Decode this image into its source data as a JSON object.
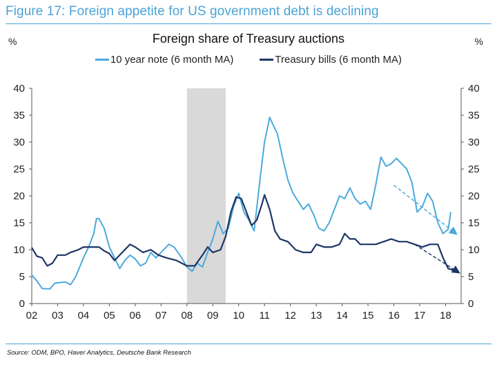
{
  "figure_title": "Figure 17: Foreign appetite for US government debt is declining",
  "source": "Source: ODM, BPO, Haver Analytics, Deutsche Bank Research",
  "colors": {
    "accent": "#4aa3d6",
    "light_series": "#4aa9dc",
    "dark_series": "#1c3565",
    "recession_shade": "#d9d9d9"
  },
  "chart_data": {
    "type": "line",
    "title": "Foreign share of Treasury auctions",
    "ylabel_left": "%",
    "ylabel_right": "%",
    "ylim": [
      0,
      40
    ],
    "yticks": [
      "0",
      "5",
      "10",
      "15",
      "20",
      "25",
      "30",
      "35",
      "40"
    ],
    "xlim": [
      2002,
      2018.6
    ],
    "xticks": [
      {
        "value": 2002,
        "label": "02"
      },
      {
        "value": 2003,
        "label": "03"
      },
      {
        "value": 2004,
        "label": "04"
      },
      {
        "value": 2005,
        "label": "05"
      },
      {
        "value": 2006,
        "label": "06"
      },
      {
        "value": 2007,
        "label": "07"
      },
      {
        "value": 2008,
        "label": "08"
      },
      {
        "value": 2009,
        "label": "09"
      },
      {
        "value": 2010,
        "label": "10"
      },
      {
        "value": 2011,
        "label": "11"
      },
      {
        "value": 2012,
        "label": "12"
      },
      {
        "value": 2013,
        "label": "13"
      },
      {
        "value": 2014,
        "label": "14"
      },
      {
        "value": 2015,
        "label": "15"
      },
      {
        "value": 2016,
        "label": "16"
      },
      {
        "value": 2017,
        "label": "17"
      },
      {
        "value": 2018,
        "label": "18"
      }
    ],
    "grid": false,
    "legend_position": "top-center",
    "shaded_period": {
      "start": 2008.0,
      "end": 2009.5
    },
    "series": [
      {
        "name": "10 year note (6 month MA)",
        "color": "#4aa9dc",
        "points": [
          [
            2002.0,
            5.3
          ],
          [
            2002.2,
            4.2
          ],
          [
            2002.4,
            2.8
          ],
          [
            2002.7,
            2.7
          ],
          [
            2002.9,
            3.8
          ],
          [
            2003.3,
            4.0
          ],
          [
            2003.5,
            3.5
          ],
          [
            2003.7,
            5.0
          ],
          [
            2004.0,
            8.5
          ],
          [
            2004.2,
            10.5
          ],
          [
            2004.4,
            13.0
          ],
          [
            2004.5,
            15.8
          ],
          [
            2004.6,
            15.8
          ],
          [
            2004.8,
            14.0
          ],
          [
            2005.0,
            10.5
          ],
          [
            2005.2,
            8.5
          ],
          [
            2005.4,
            6.5
          ],
          [
            2005.6,
            8.0
          ],
          [
            2005.8,
            9.0
          ],
          [
            2006.0,
            8.3
          ],
          [
            2006.2,
            7.0
          ],
          [
            2006.4,
            7.5
          ],
          [
            2006.6,
            9.5
          ],
          [
            2006.8,
            8.5
          ],
          [
            2007.0,
            9.5
          ],
          [
            2007.3,
            11.0
          ],
          [
            2007.5,
            10.5
          ],
          [
            2007.8,
            8.5
          ],
          [
            2008.0,
            6.8
          ],
          [
            2008.2,
            6.0
          ],
          [
            2008.4,
            7.5
          ],
          [
            2008.6,
            6.8
          ],
          [
            2008.8,
            9.5
          ],
          [
            2009.0,
            12.0
          ],
          [
            2009.2,
            15.3
          ],
          [
            2009.4,
            13.0
          ],
          [
            2009.6,
            14.0
          ],
          [
            2009.8,
            18.0
          ],
          [
            2010.0,
            20.5
          ],
          [
            2010.2,
            17.0
          ],
          [
            2010.4,
            15.5
          ],
          [
            2010.6,
            13.5
          ],
          [
            2010.8,
            22.0
          ],
          [
            2011.0,
            30.0
          ],
          [
            2011.2,
            34.6
          ],
          [
            2011.3,
            33.5
          ],
          [
            2011.5,
            31.5
          ],
          [
            2011.7,
            27.0
          ],
          [
            2011.9,
            23.0
          ],
          [
            2012.1,
            20.5
          ],
          [
            2012.3,
            19.0
          ],
          [
            2012.5,
            17.5
          ],
          [
            2012.7,
            18.5
          ],
          [
            2012.9,
            16.5
          ],
          [
            2013.1,
            14.0
          ],
          [
            2013.3,
            13.5
          ],
          [
            2013.5,
            15.0
          ],
          [
            2013.7,
            17.5
          ],
          [
            2013.9,
            20.0
          ],
          [
            2014.1,
            19.5
          ],
          [
            2014.3,
            21.5
          ],
          [
            2014.5,
            19.5
          ],
          [
            2014.7,
            18.5
          ],
          [
            2014.9,
            19.0
          ],
          [
            2015.1,
            17.5
          ],
          [
            2015.3,
            22.0
          ],
          [
            2015.5,
            27.2
          ],
          [
            2015.7,
            25.5
          ],
          [
            2015.9,
            26.0
          ],
          [
            2016.1,
            27.0
          ],
          [
            2016.3,
            26.0
          ],
          [
            2016.5,
            25.0
          ],
          [
            2016.7,
            22.5
          ],
          [
            2016.9,
            17.0
          ],
          [
            2017.1,
            18.0
          ],
          [
            2017.3,
            20.5
          ],
          [
            2017.5,
            19.0
          ],
          [
            2017.7,
            15.0
          ],
          [
            2017.9,
            13.0
          ],
          [
            2018.1,
            13.8
          ],
          [
            2018.2,
            17.0
          ]
        ]
      },
      {
        "name": "Treasury bills (6 month MA)",
        "color": "#1c3565",
        "points": [
          [
            2002.0,
            10.4
          ],
          [
            2002.2,
            8.8
          ],
          [
            2002.4,
            8.5
          ],
          [
            2002.6,
            7.0
          ],
          [
            2002.8,
            7.5
          ],
          [
            2003.0,
            9.0
          ],
          [
            2003.3,
            9.0
          ],
          [
            2003.5,
            9.5
          ],
          [
            2003.8,
            10.0
          ],
          [
            2004.0,
            10.5
          ],
          [
            2004.3,
            10.5
          ],
          [
            2004.6,
            10.5
          ],
          [
            2004.8,
            9.8
          ],
          [
            2005.0,
            9.3
          ],
          [
            2005.2,
            8.0
          ],
          [
            2005.5,
            9.5
          ],
          [
            2005.8,
            11.0
          ],
          [
            2006.0,
            10.5
          ],
          [
            2006.3,
            9.5
          ],
          [
            2006.6,
            10.0
          ],
          [
            2006.9,
            9.0
          ],
          [
            2007.2,
            8.5
          ],
          [
            2007.6,
            8.0
          ],
          [
            2007.8,
            7.5
          ],
          [
            2008.0,
            7.0
          ],
          [
            2008.3,
            7.0
          ],
          [
            2008.6,
            9.0
          ],
          [
            2008.8,
            10.5
          ],
          [
            2009.0,
            9.5
          ],
          [
            2009.3,
            10.0
          ],
          [
            2009.5,
            12.5
          ],
          [
            2009.7,
            17.0
          ],
          [
            2009.9,
            19.8
          ],
          [
            2010.1,
            19.5
          ],
          [
            2010.3,
            17.0
          ],
          [
            2010.5,
            14.5
          ],
          [
            2010.7,
            15.5
          ],
          [
            2010.9,
            18.5
          ],
          [
            2011.0,
            20.2
          ],
          [
            2011.2,
            17.5
          ],
          [
            2011.4,
            13.5
          ],
          [
            2011.6,
            12.0
          ],
          [
            2011.9,
            11.5
          ],
          [
            2012.2,
            10.0
          ],
          [
            2012.5,
            9.5
          ],
          [
            2012.8,
            9.5
          ],
          [
            2013.0,
            11.0
          ],
          [
            2013.3,
            10.5
          ],
          [
            2013.6,
            10.5
          ],
          [
            2013.9,
            11.0
          ],
          [
            2014.1,
            13.0
          ],
          [
            2014.3,
            12.0
          ],
          [
            2014.5,
            12.0
          ],
          [
            2014.7,
            11.0
          ],
          [
            2015.0,
            11.0
          ],
          [
            2015.3,
            11.0
          ],
          [
            2015.6,
            11.5
          ],
          [
            2015.9,
            12.0
          ],
          [
            2016.2,
            11.5
          ],
          [
            2016.5,
            11.5
          ],
          [
            2016.8,
            11.0
          ],
          [
            2017.1,
            10.5
          ],
          [
            2017.4,
            11.0
          ],
          [
            2017.7,
            11.0
          ],
          [
            2017.9,
            8.5
          ],
          [
            2018.1,
            6.5
          ],
          [
            2018.3,
            6.2
          ]
        ]
      }
    ],
    "trend_arrows": [
      {
        "series": "10 year note (6 month MA)",
        "from": [
          2016.0,
          22.0
        ],
        "to": [
          2018.4,
          13.0
        ]
      },
      {
        "series": "Treasury bills (6 month MA)",
        "from": [
          2016.8,
          11.0
        ],
        "to": [
          2018.5,
          5.8
        ]
      }
    ]
  }
}
